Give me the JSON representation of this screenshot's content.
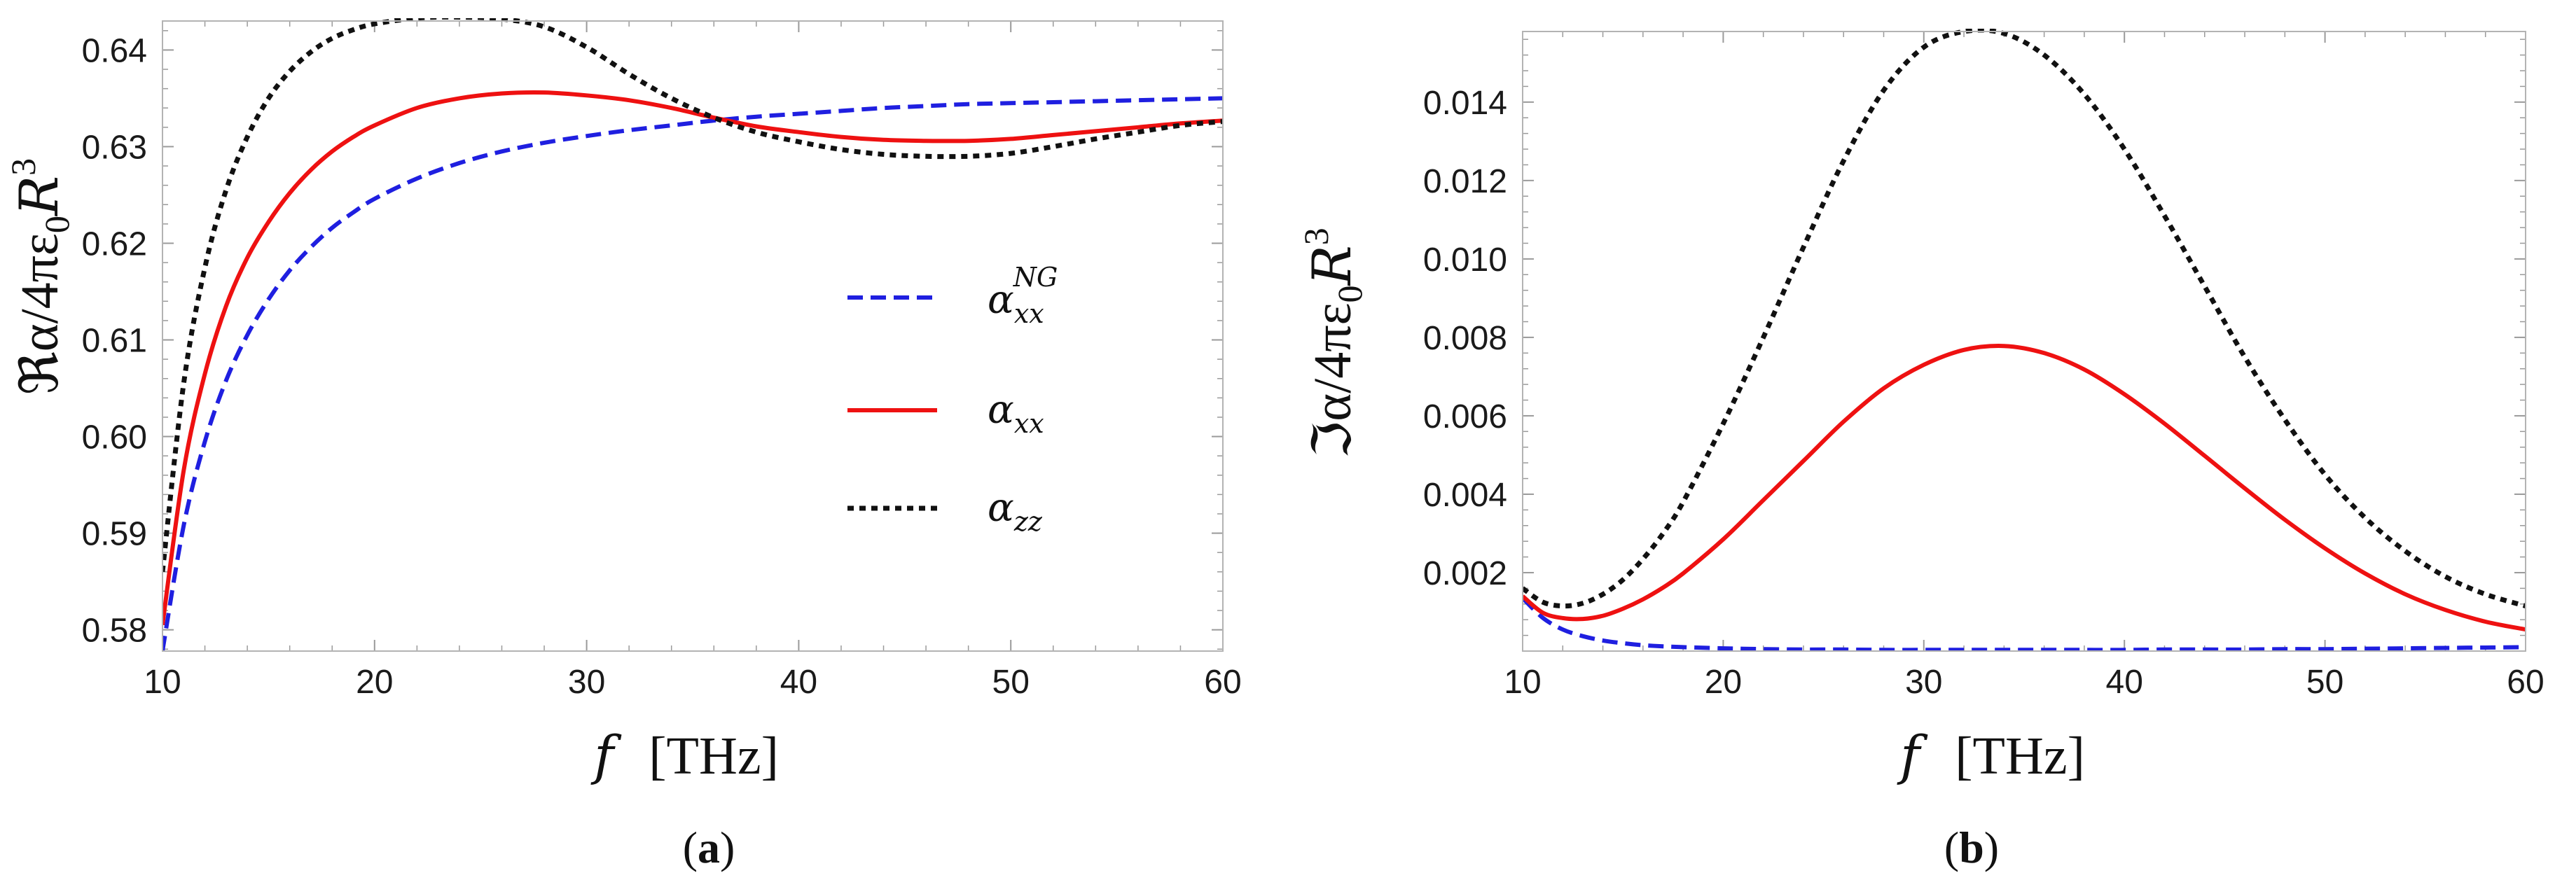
{
  "colors": {
    "blue": "#1f1fe0",
    "red": "#ee1111",
    "black": "#111111",
    "frame": "#b3b3b3",
    "tick": "#9a9a9a"
  },
  "chart_data": [
    {
      "type": "line",
      "panel": "a",
      "caption": {
        "open": "(",
        "letter": "a",
        "close": ")"
      },
      "xlabel": {
        "var": "f",
        "unit": "[THz]"
      },
      "ylabel": {
        "prefix": "ℜα/4πε",
        "sub0": "0",
        "mid": "R",
        "sup3": "3"
      },
      "xlim": [
        10,
        60
      ],
      "ylim": [
        0.5778,
        0.643
      ],
      "xticks": [
        10,
        20,
        30,
        40,
        50,
        60
      ],
      "xtick_labels": [
        "10",
        "20",
        "30",
        "40",
        "50",
        "60"
      ],
      "yticks": [
        0.58,
        0.59,
        0.6,
        0.61,
        0.62,
        0.63,
        0.64
      ],
      "ytick_labels": [
        "0.58",
        "0.59",
        "0.60",
        "0.61",
        "0.62",
        "0.63",
        "0.64"
      ],
      "legend_position": "center-right",
      "x": [
        10,
        11,
        12,
        13,
        14,
        15,
        16,
        17,
        18,
        19,
        20,
        22,
        24,
        26,
        28,
        30,
        32,
        34,
        36,
        38,
        40,
        42,
        44,
        46,
        48,
        50,
        52,
        54,
        56,
        58,
        60
      ],
      "series": [
        {
          "name": "α_xx^NG",
          "legend": {
            "base": "α",
            "sub": "xx",
            "sup": "NG"
          },
          "style": "dashed",
          "color_key": "blue",
          "values": [
            0.5778,
            0.5908,
            0.5995,
            0.6058,
            0.6105,
            0.6142,
            0.6172,
            0.6196,
            0.6216,
            0.6232,
            0.6246,
            0.6267,
            0.6283,
            0.6295,
            0.6304,
            0.6311,
            0.6317,
            0.6322,
            0.6327,
            0.6331,
            0.6334,
            0.6337,
            0.634,
            0.6342,
            0.6344,
            0.6345,
            0.6346,
            0.6347,
            0.6348,
            0.6349,
            0.635
          ]
        },
        {
          "name": "α_xx",
          "legend": {
            "base": "α",
            "sub": "xx",
            "sup": ""
          },
          "style": "solid",
          "color_key": "red",
          "values": [
            0.5805,
            0.5965,
            0.6065,
            0.6135,
            0.6185,
            0.6222,
            0.6252,
            0.6276,
            0.6295,
            0.631,
            0.6322,
            0.634,
            0.635,
            0.6355,
            0.6356,
            0.6353,
            0.6348,
            0.634,
            0.633,
            0.6321,
            0.6315,
            0.631,
            0.6307,
            0.6306,
            0.6306,
            0.6308,
            0.6312,
            0.6316,
            0.632,
            0.6324,
            0.6327
          ]
        },
        {
          "name": "α_zz",
          "legend": {
            "base": "α",
            "sub": "zz",
            "sup": ""
          },
          "style": "dotted",
          "color_key": "black",
          "values": [
            0.586,
            0.6055,
            0.6175,
            0.6255,
            0.631,
            0.635,
            0.6378,
            0.6398,
            0.6412,
            0.6421,
            0.6427,
            0.6433,
            0.6434,
            0.6432,
            0.6424,
            0.6403,
            0.6375,
            0.635,
            0.633,
            0.6315,
            0.6305,
            0.6297,
            0.6292,
            0.629,
            0.629,
            0.6293,
            0.63,
            0.6308,
            0.6315,
            0.6322,
            0.6326
          ]
        }
      ]
    },
    {
      "type": "line",
      "panel": "b",
      "caption": {
        "open": "(",
        "letter": "b",
        "close": ")"
      },
      "xlabel": {
        "var": "f",
        "unit": "[THz]"
      },
      "ylabel": {
        "prefix": "ℑα/4πε",
        "sub0": "0",
        "mid": "R",
        "sup3": "3"
      },
      "xlim": [
        10,
        60
      ],
      "ylim": [
        0,
        0.0158
      ],
      "xticks": [
        10,
        20,
        30,
        40,
        50,
        60
      ],
      "xtick_labels": [
        "10",
        "20",
        "30",
        "40",
        "50",
        "60"
      ],
      "yticks": [
        0.002,
        0.004,
        0.006,
        0.008,
        0.01,
        0.012,
        0.014
      ],
      "ytick_labels": [
        "0.002",
        "0.004",
        "0.006",
        "0.008",
        "0.010",
        "0.012",
        "0.014"
      ],
      "x": [
        10,
        11,
        12,
        13,
        14,
        15,
        16,
        17,
        18,
        20,
        22,
        24,
        26,
        28,
        30,
        32,
        34,
        36,
        38,
        40,
        42,
        44,
        46,
        48,
        50,
        52,
        54,
        56,
        58,
        60
      ],
      "series": [
        {
          "name": "α_xx^NG",
          "style": "dashed",
          "color_key": "blue",
          "values": [
            0.00135,
            0.00085,
            0.00055,
            0.00038,
            0.00027,
            0.0002,
            0.00015,
            0.00012,
            0.0001,
            7e-05,
            5e-05,
            4e-05,
            4e-05,
            3e-05,
            3e-05,
            3e-05,
            3e-05,
            3e-05,
            3e-05,
            3e-05,
            4e-05,
            4e-05,
            4e-05,
            5e-05,
            5e-05,
            6e-05,
            7e-05,
            8e-05,
            9e-05,
            0.0001
          ]
        },
        {
          "name": "α_xx",
          "style": "solid",
          "color_key": "red",
          "values": [
            0.0014,
            0.00098,
            0.00084,
            0.00082,
            0.0009,
            0.00108,
            0.00132,
            0.00162,
            0.00198,
            0.00285,
            0.00385,
            0.00485,
            0.00585,
            0.0067,
            0.0073,
            0.00768,
            0.00778,
            0.0076,
            0.00718,
            0.00655,
            0.0058,
            0.00498,
            0.00415,
            0.00335,
            0.00262,
            0.00198,
            0.00145,
            0.00105,
            0.00075,
            0.00055
          ]
        },
        {
          "name": "α_zz",
          "style": "dotted",
          "color_key": "black",
          "values": [
            0.0016,
            0.00125,
            0.00115,
            0.00122,
            0.00145,
            0.00182,
            0.00235,
            0.003,
            0.0038,
            0.0058,
            0.008,
            0.0103,
            0.0125,
            0.0143,
            0.0154,
            0.0158,
            0.01575,
            0.0152,
            0.0142,
            0.0128,
            0.0111,
            0.0093,
            0.0075,
            0.0059,
            0.0045,
            0.0034,
            0.00255,
            0.0019,
            0.00145,
            0.00115
          ]
        }
      ]
    }
  ]
}
